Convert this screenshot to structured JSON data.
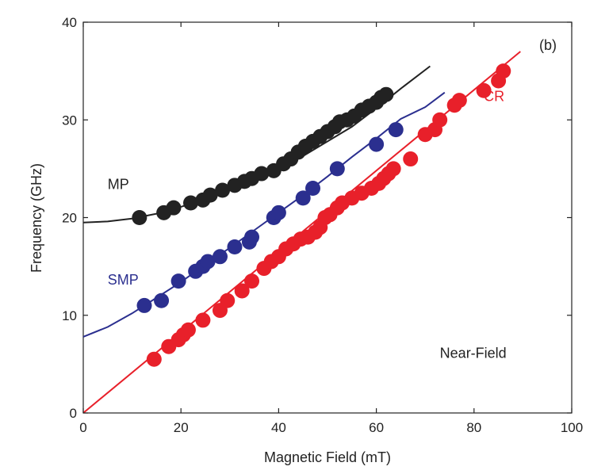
{
  "chart_data": {
    "type": "scatter",
    "panel_label": "(b)",
    "xlabel": "Magnetic Field (mT)",
    "ylabel": "Frequency (GHz)",
    "xlim": [
      0,
      100
    ],
    "ylim": [
      0,
      40
    ],
    "x_ticks": [
      0,
      20,
      40,
      60,
      80,
      100
    ],
    "y_ticks": [
      0,
      10,
      20,
      30,
      40
    ],
    "grid": false,
    "annotations": [
      {
        "text": "Near-Field",
        "x": 73,
        "y": 6.2,
        "color": "#222222"
      }
    ],
    "series": [
      {
        "name": "MP",
        "label_at": [
          5,
          23.5
        ],
        "color": "#222222",
        "points": [
          [
            11.5,
            20
          ],
          [
            16.5,
            20.5
          ],
          [
            18.5,
            21
          ],
          [
            22,
            21.5
          ],
          [
            24.5,
            21.8
          ],
          [
            26,
            22.3
          ],
          [
            28.5,
            22.8
          ],
          [
            31,
            23.3
          ],
          [
            33,
            23.7
          ],
          [
            34.5,
            24
          ],
          [
            36.5,
            24.5
          ],
          [
            39,
            24.8
          ],
          [
            41,
            25.5
          ],
          [
            42.5,
            26
          ],
          [
            44,
            26.7
          ],
          [
            45.5,
            27.3
          ],
          [
            47,
            27.8
          ],
          [
            48.5,
            28.3
          ],
          [
            50,
            28.8
          ],
          [
            51.5,
            29.3
          ],
          [
            52.5,
            29.8
          ],
          [
            54,
            30
          ],
          [
            55.5,
            30.4
          ],
          [
            57,
            31
          ],
          [
            58.5,
            31.4
          ],
          [
            60,
            31.8
          ],
          [
            61,
            32.3
          ],
          [
            62,
            32.6
          ]
        ],
        "fit": [
          [
            0,
            19.5
          ],
          [
            5,
            19.6
          ],
          [
            10,
            19.9
          ],
          [
            15,
            20.4
          ],
          [
            20,
            21.1
          ],
          [
            25,
            21.9
          ],
          [
            30,
            22.8
          ],
          [
            35,
            23.8
          ],
          [
            40,
            25
          ],
          [
            45,
            26.3
          ],
          [
            50,
            27.8
          ],
          [
            55,
            29.3
          ],
          [
            60,
            31.2
          ],
          [
            65,
            33.2
          ],
          [
            71,
            35.5
          ]
        ]
      },
      {
        "name": "SMP",
        "label_at": [
          5,
          13.7
        ],
        "color": "#2b2f8f",
        "points": [
          [
            12.5,
            11
          ],
          [
            16,
            11.5
          ],
          [
            19.5,
            13.5
          ],
          [
            23,
            14.5
          ],
          [
            24.5,
            15
          ],
          [
            25.5,
            15.5
          ],
          [
            28,
            16
          ],
          [
            31,
            17
          ],
          [
            34,
            17.5
          ],
          [
            34.5,
            18
          ],
          [
            39,
            20
          ],
          [
            40,
            20.5
          ],
          [
            45,
            22
          ],
          [
            47,
            23
          ],
          [
            52,
            25
          ],
          [
            60,
            27.5
          ],
          [
            64,
            29
          ]
        ],
        "fit": [
          [
            0,
            7.8
          ],
          [
            5,
            8.8
          ],
          [
            10,
            10.2
          ],
          [
            15,
            11.8
          ],
          [
            20,
            13.4
          ],
          [
            25,
            15.2
          ],
          [
            30,
            16.9
          ],
          [
            35,
            18.7
          ],
          [
            40,
            20.5
          ],
          [
            45,
            22.3
          ],
          [
            50,
            24.2
          ],
          [
            55,
            26.2
          ],
          [
            60,
            28.1
          ],
          [
            65,
            30.1
          ],
          [
            70,
            31.3
          ],
          [
            74,
            32.8
          ]
        ]
      },
      {
        "name": "CR",
        "label_at": [
          82,
          32.5
        ],
        "color": "#e8202a",
        "points": [
          [
            14.5,
            5.5
          ],
          [
            17.5,
            6.8
          ],
          [
            19.5,
            7.5
          ],
          [
            20.5,
            8
          ],
          [
            21.5,
            8.5
          ],
          [
            24.5,
            9.5
          ],
          [
            28,
            10.5
          ],
          [
            29.5,
            11.5
          ],
          [
            32.5,
            12.5
          ],
          [
            34.5,
            13.5
          ],
          [
            37,
            14.8
          ],
          [
            38.5,
            15.5
          ],
          [
            40,
            16
          ],
          [
            41.5,
            16.8
          ],
          [
            43,
            17.3
          ],
          [
            44.5,
            17.8
          ],
          [
            46,
            18
          ],
          [
            47.5,
            18.5
          ],
          [
            48.5,
            19
          ],
          [
            49.5,
            20
          ],
          [
            50.5,
            20.3
          ],
          [
            52,
            21
          ],
          [
            53,
            21.5
          ],
          [
            55,
            22
          ],
          [
            57,
            22.5
          ],
          [
            59,
            23
          ],
          [
            60.5,
            23.5
          ],
          [
            61.5,
            24
          ],
          [
            62.5,
            24.5
          ],
          [
            63.5,
            25
          ],
          [
            67,
            26
          ],
          [
            70,
            28.5
          ],
          [
            72,
            29
          ],
          [
            73,
            30
          ],
          [
            76,
            31.5
          ],
          [
            77,
            32
          ],
          [
            82,
            33
          ],
          [
            85,
            34
          ],
          [
            86,
            35
          ]
        ],
        "fit": [
          [
            0,
            0
          ],
          [
            89.5,
            37
          ]
        ]
      }
    ]
  }
}
